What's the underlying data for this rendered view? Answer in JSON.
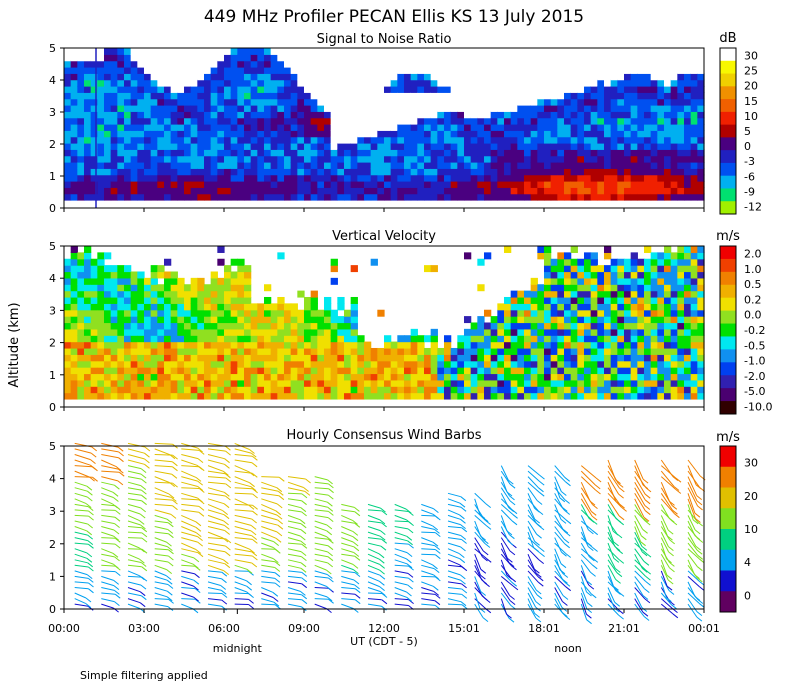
{
  "title": "449 MHz Profiler PECAN Ellis KS 13 July 2015",
  "ylabel": "Altitude (km)",
  "xlabel": "UT  (CDT - 5)",
  "footnote": "Simple filtering applied",
  "x_ticks": [
    "00:00",
    "03:00",
    "06:00",
    "09:00",
    "12:00",
    "15:01",
    "18:01",
    "21:01",
    "00:01"
  ],
  "x_tick_hours": [
    0,
    3,
    6,
    9,
    12,
    15,
    18,
    21,
    24
  ],
  "day_markers": [
    {
      "label": "midnight",
      "hour": 6.5
    },
    {
      "label": "noon",
      "hour": 18.9
    }
  ],
  "y_ticks": [
    "0",
    "1",
    "2",
    "3",
    "4",
    "5"
  ],
  "colors": {
    "snr": [
      "#a0f000",
      "#00e070",
      "#00b0f0",
      "#0050f0",
      "#2020c0",
      "#4a0080",
      "#b00000",
      "#f02000",
      "#f06000",
      "#f09000",
      "#f0d000",
      "#f8f800",
      "#ffffff"
    ],
    "vel": [
      "#300000",
      "#4a0070",
      "#3020b0",
      "#0040f0",
      "#1090f0",
      "#00e8f0",
      "#00e000",
      "#90e020",
      "#f0e000",
      "#f0b000",
      "#f08000",
      "#f04000",
      "#f00000"
    ],
    "wind": [
      "#600060",
      "#1010d0",
      "#00a0f0",
      "#00d080",
      "#80e020",
      "#e0c000",
      "#f08000",
      "#f00000"
    ]
  },
  "chart_data": [
    {
      "type": "heatmap",
      "title": "Signal to Noise Ratio",
      "unit": "dB",
      "colorbar_labels": [
        "30",
        "25",
        "20",
        "15",
        "10",
        "5",
        "0",
        "-3",
        "-6",
        "-9",
        "-12"
      ],
      "xlim": [
        0,
        24
      ],
      "ylim": [
        0,
        5
      ],
      "xlabel": "UT (CDT - 5)",
      "ylabel": "Altitude (km)"
    },
    {
      "type": "heatmap",
      "title": "Vertical Velocity",
      "unit": "m/s",
      "colorbar_labels": [
        "2.0",
        "1.0",
        "0.5",
        "0.2",
        "0.0",
        "-0.2",
        "-0.5",
        "-1.0",
        "-2.0",
        "-5.0",
        "-10.0"
      ],
      "xlim": [
        0,
        24
      ],
      "ylim": [
        0,
        5
      ],
      "xlabel": "UT (CDT - 5)",
      "ylabel": "Altitude (km)"
    },
    {
      "type": "scatter",
      "title": "Hourly Consensus Wind Barbs",
      "unit": "m/s",
      "colorbar_labels": [
        "30",
        "20",
        "10",
        "4",
        "0"
      ],
      "xlim": [
        0,
        24
      ],
      "ylim": [
        0,
        5
      ],
      "xlabel": "UT (CDT - 5)",
      "ylabel": "Altitude (km)"
    }
  ]
}
